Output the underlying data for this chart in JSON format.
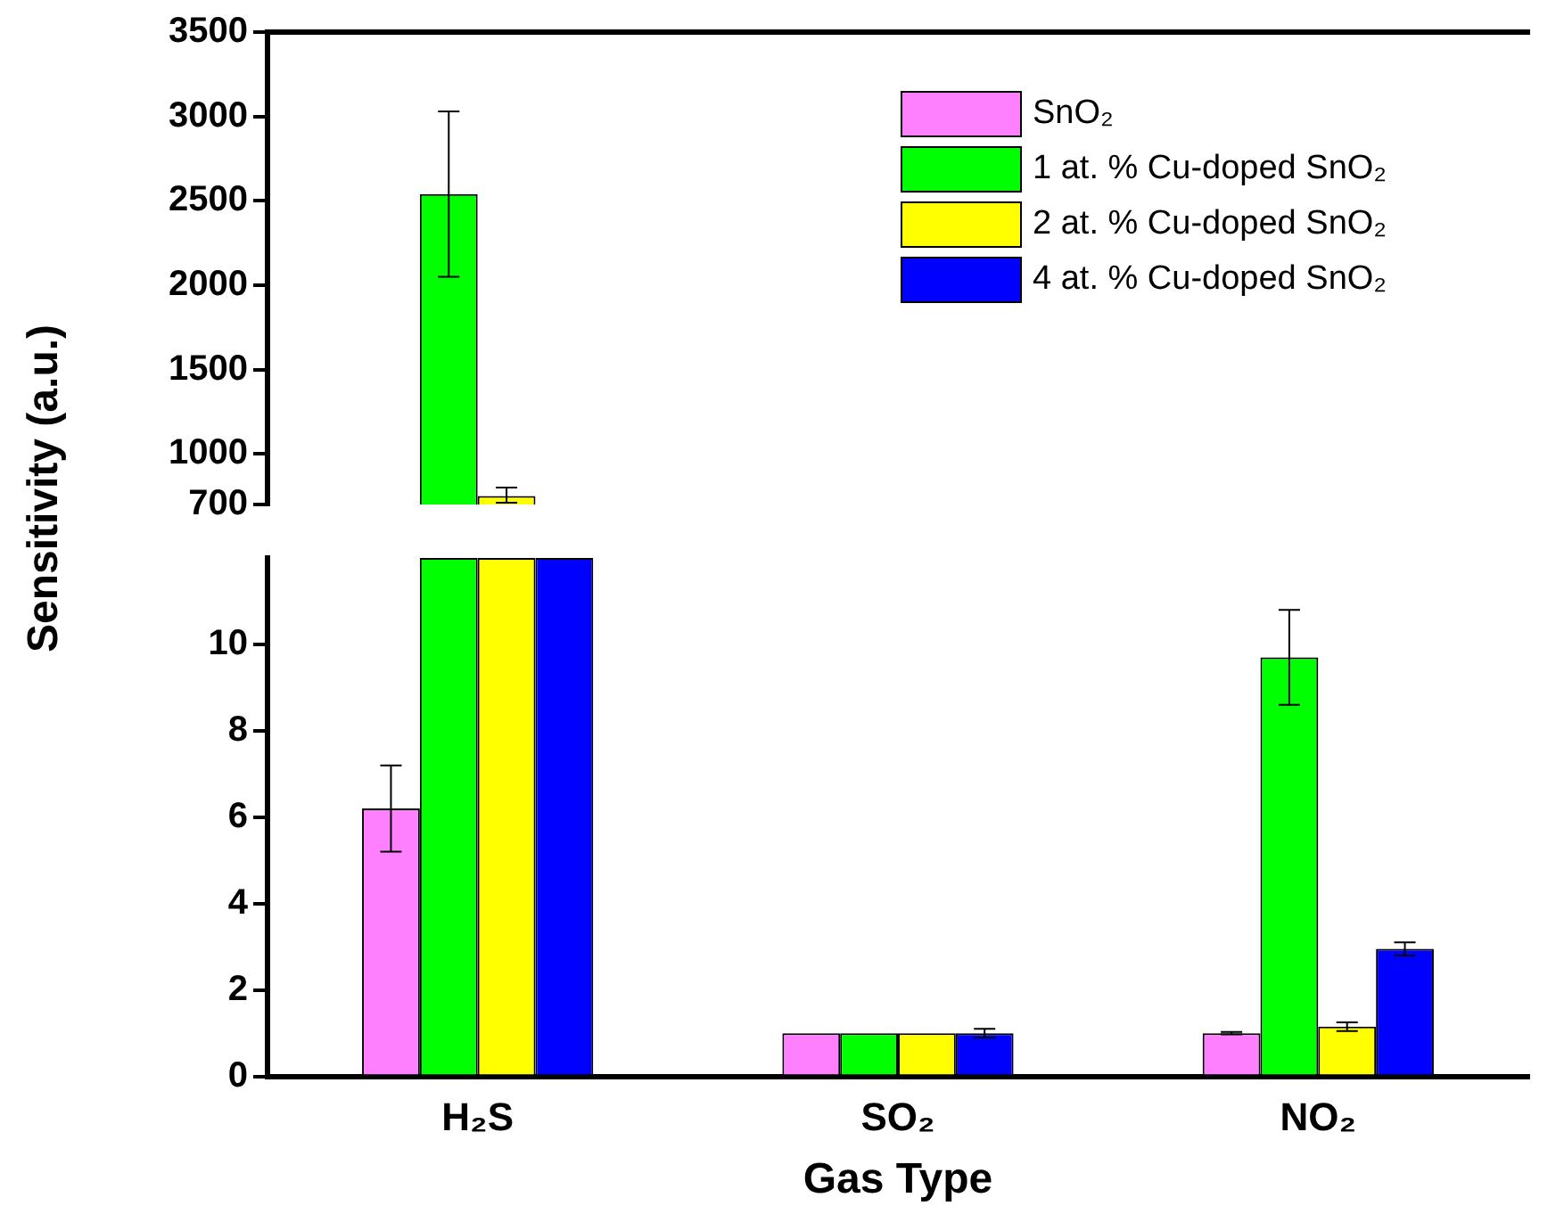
{
  "chart_data": [
    {
      "type": "bar",
      "ylabel": "Sensitivity (a.u.)",
      "categories": [
        null,
        null,
        null
      ],
      "ylim": [
        700,
        3500
      ],
      "yticks": [
        700,
        1000,
        1500,
        2000,
        2500,
        3000,
        3500
      ],
      "tick_labels": "y",
      "grid": false,
      "legend": "top right",
      "series": [
        {
          "name": "SnO₂",
          "color": "#ff80ff",
          "values": [
            null,
            null,
            null
          ]
        },
        {
          "name": "1 at. % Cu-doped SnO₂",
          "color": "#00ff00",
          "values": [
            2540,
            null,
            null
          ],
          "errors": [
            [
              2050,
              3030
            ],
            null,
            null
          ]
        },
        {
          "name": "2 at. % Cu-doped SnO₂",
          "color": "#ffff00",
          "values": [
            750,
            null,
            null
          ],
          "errors": [
            [
              710,
              800
            ],
            null,
            null
          ]
        },
        {
          "name": "4 at. % Cu-doped SnO₂",
          "color": "#0000ff",
          "values": [
            null,
            null,
            null
          ]
        }
      ]
    },
    {
      "type": "bar",
      "xlabel": "Gas Type",
      "categories": [
        "H₂S",
        "SO₂",
        "NO₂"
      ],
      "ylim": [
        0,
        12
      ],
      "yticks": [
        0,
        2,
        4,
        6,
        8,
        10
      ],
      "grid": false,
      "series": [
        {
          "color": "#ff80ff",
          "values": [
            6.2,
            1.0,
            1.0
          ],
          "errors": [
            1.0,
            null,
            0.03
          ]
        },
        {
          "color": "#00ff00",
          "values": [
            12,
            1.0,
            9.7
          ],
          "errors": [
            null,
            null,
            1.1
          ]
        },
        {
          "color": "#ffff00",
          "values": [
            12,
            1.0,
            1.15
          ],
          "errors": [
            null,
            null,
            0.1
          ]
        },
        {
          "color": "#0000ff",
          "values": [
            12,
            1.0,
            2.95
          ],
          "errors": [
            null,
            0.1,
            0.15
          ]
        }
      ]
    }
  ]
}
